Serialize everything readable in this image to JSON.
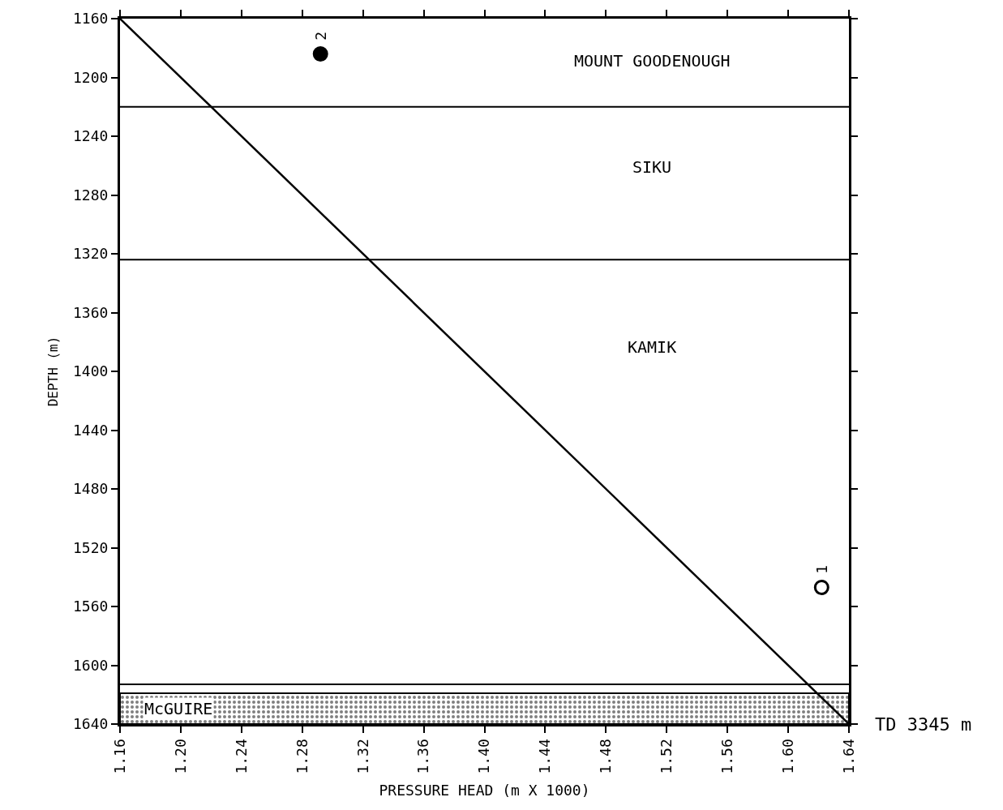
{
  "chart_data": {
    "type": "scatter",
    "xlabel": "PRESSURE HEAD (m X 1000)",
    "ylabel": "DEPTH (m)",
    "xlim": [
      1.16,
      1.64
    ],
    "ylim": [
      1640,
      1160
    ],
    "xticks": [
      1.16,
      {
        "value": 1.2,
        "label": "1.20"
      },
      1.24,
      1.28,
      1.32,
      1.36,
      {
        "value": 1.4,
        "label": "1.40"
      },
      1.44,
      1.48,
      1.52,
      1.56,
      {
        "value": 1.6,
        "label": "1.60"
      },
      1.64
    ],
    "yticks": [
      1160,
      1200,
      1240,
      1280,
      1320,
      1360,
      1400,
      1440,
      1480,
      1520,
      1560,
      1600,
      1640
    ],
    "series": [
      {
        "type": "line",
        "color": "#000000",
        "x": [
          1.16,
          1.64
        ],
        "values": [
          1160,
          1640
        ],
        "marker": "none",
        "line_style": "solid"
      },
      {
        "color": "#000000",
        "x": [
          1.292
        ],
        "values": [
          1184
        ],
        "marker": "circle"
      },
      {
        "color": "#ffffff",
        "x": [
          1.622
        ],
        "values": [
          1547
        ],
        "marker": "circle"
      }
    ],
    "ref_lines": [
      {
        "axis": "y",
        "value": 1220,
        "color": "#000000",
        "line_style": "solid"
      },
      {
        "axis": "y",
        "value": 1324,
        "color": "#000000",
        "line_style": "solid"
      },
      {
        "axis": "y",
        "value": 1613,
        "color": "#000000",
        "line_style": "solid"
      }
    ],
    "bands": [
      {
        "axis": "y",
        "from": 1619,
        "to": 1640,
        "label": "McGUIRE",
        "color": "#000000"
      }
    ],
    "annotations": [
      {
        "text": "2",
        "x": 1.292,
        "y": 1184
      },
      {
        "text": "1",
        "x": 1.622,
        "y": 1547
      },
      "MOUNT GOODENOUGH",
      "SIKU",
      "KAMIK",
      "TD 3345 m"
    ]
  }
}
